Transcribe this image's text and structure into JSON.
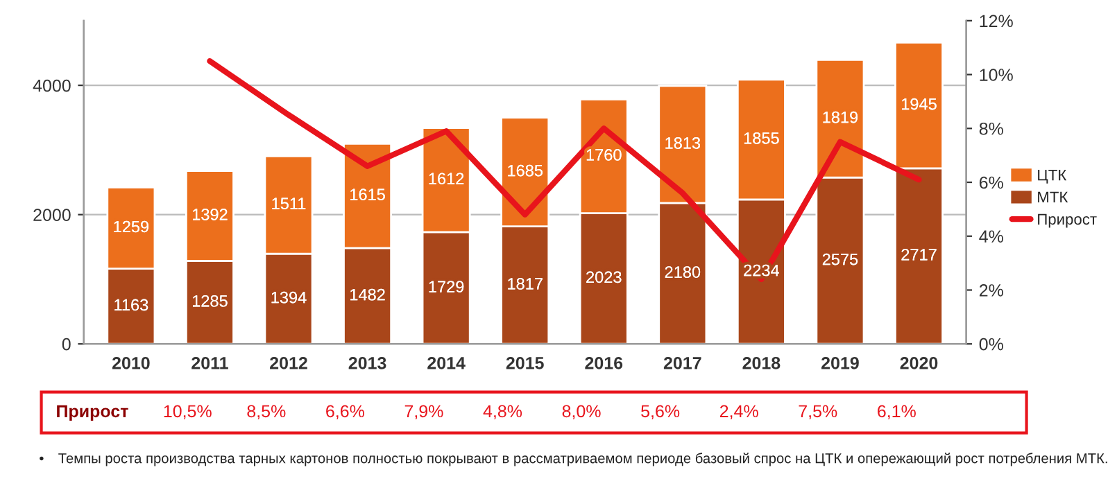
{
  "chart_data": {
    "type": "bar",
    "stacked": true,
    "categories": [
      "2010",
      "2011",
      "2012",
      "2013",
      "2014",
      "2015",
      "2016",
      "2017",
      "2018",
      "2019",
      "2020"
    ],
    "series": [
      {
        "name": "МТК",
        "color": "#a9461a",
        "values": [
          1163,
          1285,
          1394,
          1482,
          1729,
          1817,
          2023,
          2180,
          2234,
          2575,
          2717
        ],
        "value_labels": [
          "1163",
          "1285",
          "1394",
          "1482",
          "1729",
          "1817",
          "2023",
          "2180",
          "2234",
          "2575",
          "2717"
        ]
      },
      {
        "name": "ЦТК",
        "color": "#ec6f1c",
        "values": [
          1259,
          1392,
          1511,
          1615,
          1612,
          1685,
          1760,
          1813,
          1855,
          1819,
          1945
        ],
        "value_labels": [
          "1259",
          "1392",
          "1511",
          "1615",
          "1612",
          "1685",
          "1760",
          "1813",
          "1855",
          "1819",
          "1945"
        ]
      },
      {
        "name": "Прирост",
        "type": "line",
        "axis": "y2",
        "color": "#e8141c",
        "values": [
          null,
          10.5,
          8.5,
          6.6,
          7.9,
          4.8,
          8.0,
          5.6,
          2.4,
          7.5,
          6.1
        ],
        "value_labels": [
          null,
          "10,5%",
          "8,5%",
          "6,6%",
          "7,9%",
          "4,8%",
          "8,0%",
          "5,6%",
          "2,4%",
          "7,5%",
          "6,1%"
        ]
      }
    ],
    "ylim": [
      0,
      5000
    ],
    "yticks": [
      0,
      2000,
      4000
    ],
    "y2lim": [
      0,
      12
    ],
    "y2ticks": [
      {
        "value": 0,
        "label": "0%"
      },
      {
        "value": 2,
        "label": "2%"
      },
      {
        "value": 4,
        "label": "4%"
      },
      {
        "value": 6,
        "label": "6%"
      },
      {
        "value": 8,
        "label": "8%"
      },
      {
        "value": 10,
        "label": "10%"
      },
      {
        "value": 12,
        "label": "12%"
      }
    ],
    "grid": "y",
    "legend": "right",
    "annotations": [
      "• Темпы роста производства тарных картонов полностью покрывают в рассматриваемом периоде базовый спрос на ЦТК и опережающий рост потребления МТК."
    ]
  }
}
